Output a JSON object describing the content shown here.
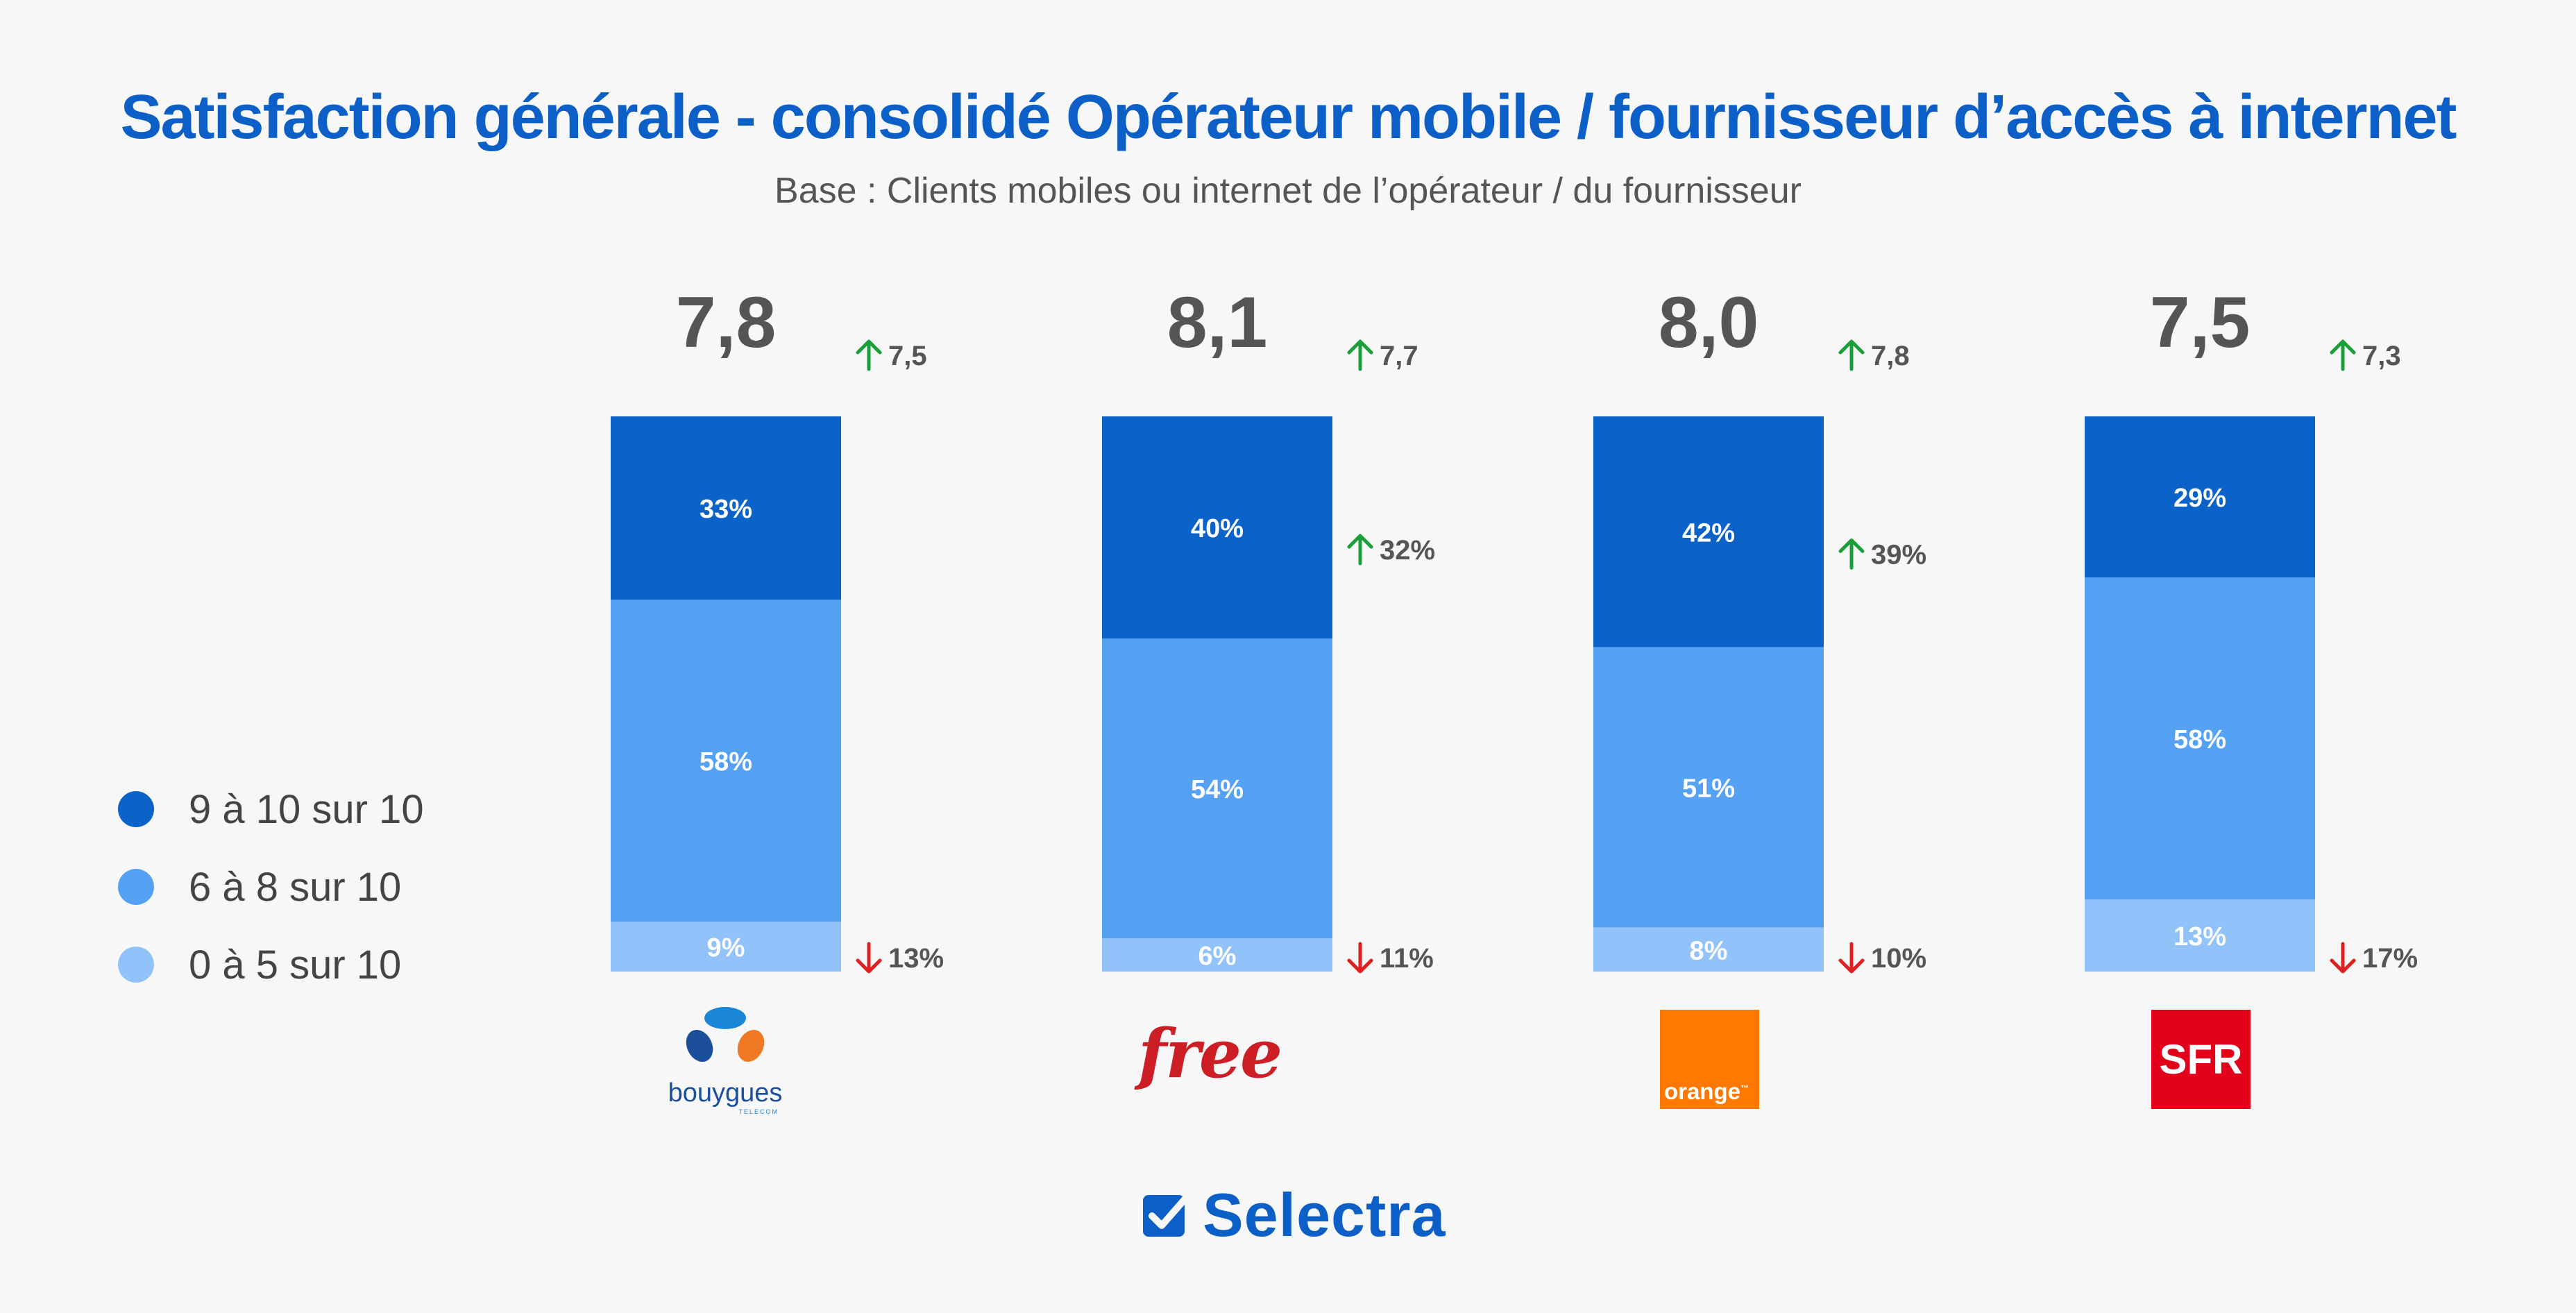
{
  "title": "Satisfaction générale - consolidé Opérateur mobile / fournisseur d’accès à internet",
  "subtitle": "Base : Clients mobiles ou internet de l’opérateur / du fournisseur",
  "colors": {
    "high": "#0b63c9",
    "mid": "#55a1f4",
    "low": "#92c2fa",
    "up": "#1a9e3a",
    "down": "#e02020",
    "title": "#0b5fc6"
  },
  "legend": [
    {
      "label": "9 à 10 sur 10",
      "color": "#0b63c9"
    },
    {
      "label": "6 à 8 sur 10",
      "color": "#55a1f4"
    },
    {
      "label": "0 à 5 sur 10",
      "color": "#92c2fa"
    }
  ],
  "chart_data": {
    "type": "bar",
    "stacked": true,
    "categories": [
      "bouygues",
      "free",
      "orange",
      "SFR"
    ],
    "series": [
      {
        "name": "9 à 10 sur 10",
        "values": [
          33,
          40,
          42,
          29
        ]
      },
      {
        "name": "6 à 8 sur 10",
        "values": [
          58,
          54,
          51,
          58
        ]
      },
      {
        "name": "0 à 5 sur 10",
        "values": [
          9,
          6,
          8,
          13
        ]
      }
    ],
    "value_labels": [
      [
        "33%",
        "40%",
        "42%",
        "29%"
      ],
      [
        "58%",
        "54%",
        "51%",
        "58%"
      ],
      [
        "9%",
        "6%",
        "8%",
        "13%"
      ]
    ],
    "scores": [
      "7,8",
      "8,1",
      "8,0",
      "7,5"
    ],
    "prev_scores": [
      "7,5",
      "7,7",
      "7,8",
      "7,3"
    ],
    "top_comparisons": [
      "",
      "32%",
      "39%",
      ""
    ],
    "bottom_comparisons": [
      "13%",
      "11%",
      "10%",
      "17%"
    ],
    "ylim": [
      0,
      100
    ]
  },
  "logos": {
    "bouygues": {
      "text": "bouygues",
      "subtext": "TELECOM"
    },
    "free": {
      "text": "free"
    },
    "orange": {
      "text": "orange",
      "mark": "™"
    },
    "sfr": {
      "text": "SFR"
    }
  },
  "brand": {
    "name": "Selectra"
  }
}
